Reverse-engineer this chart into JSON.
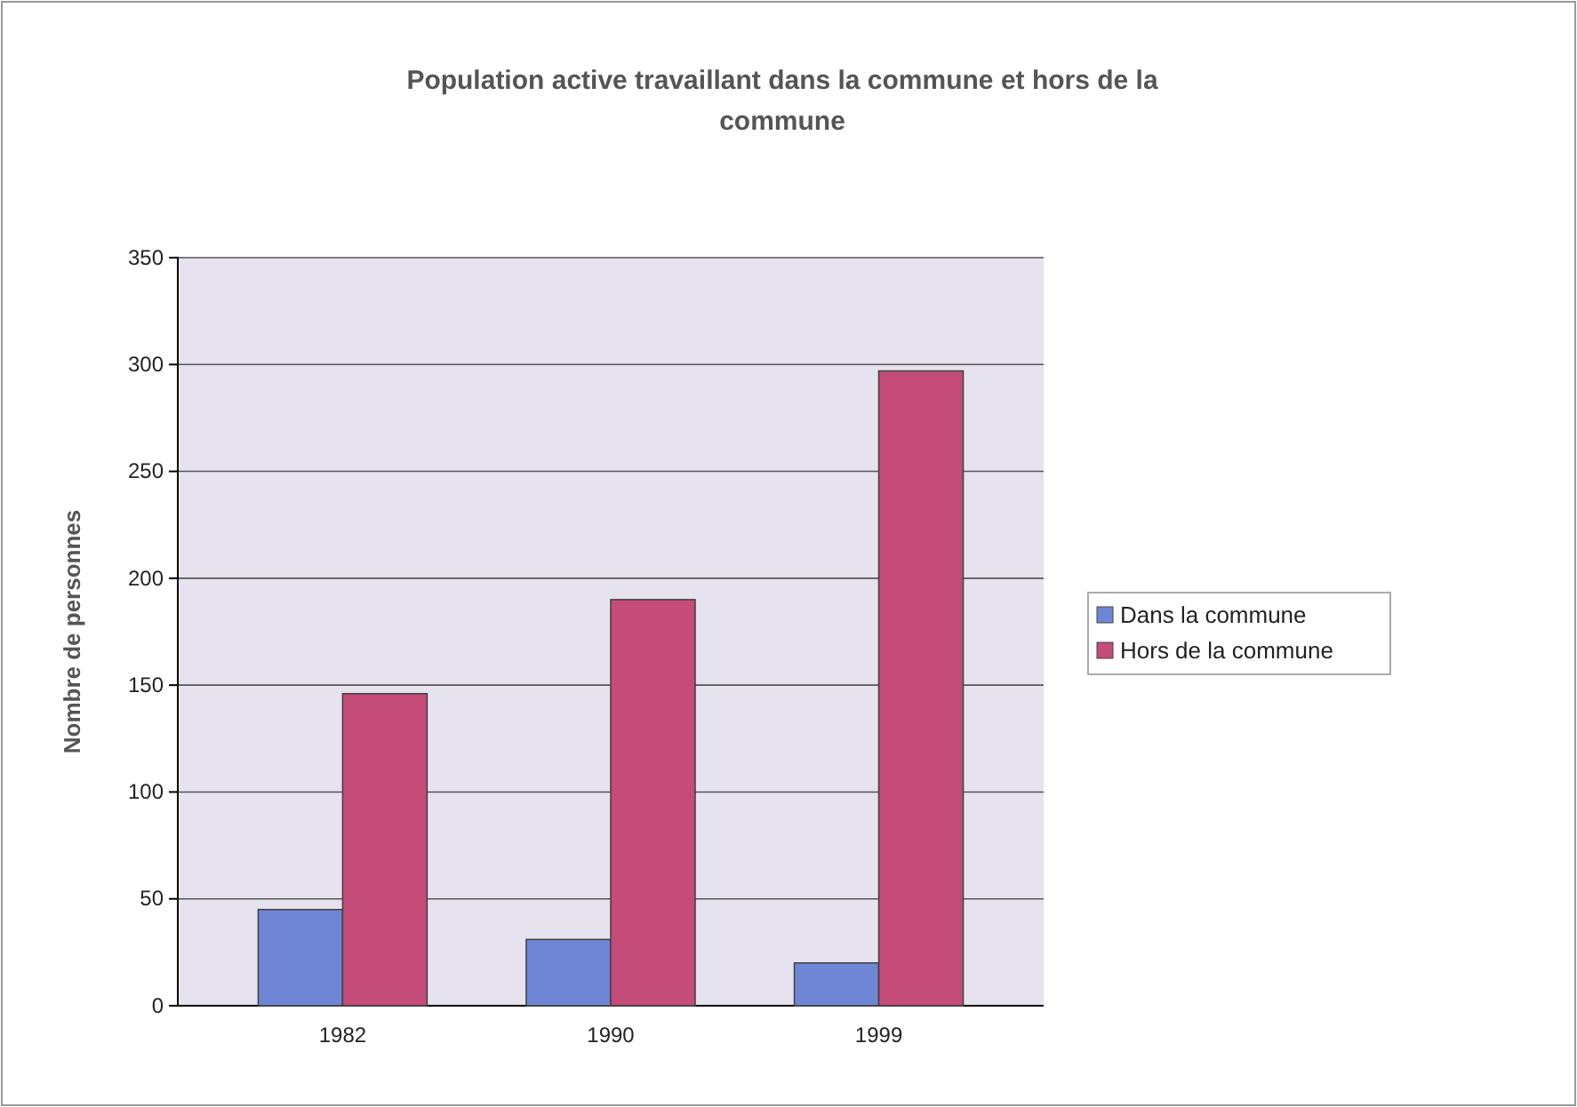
{
  "chart_data": {
    "type": "bar",
    "title": "Population active travaillant dans la commune et hors de la commune",
    "ylabel": "Nombre de personnes",
    "categories": [
      "1982",
      "1990",
      "1999"
    ],
    "series": [
      {
        "name": "Dans la commune",
        "color": "#6f86d6",
        "values": [
          45,
          31,
          20
        ]
      },
      {
        "name": "Hors de la commune",
        "color": "#c54b79",
        "values": [
          146,
          190,
          297
        ]
      }
    ],
    "ylim": [
      0,
      350
    ],
    "yticks": [
      0,
      50,
      100,
      150,
      200,
      250,
      300,
      350
    ],
    "grid": "y",
    "legend": "right"
  }
}
